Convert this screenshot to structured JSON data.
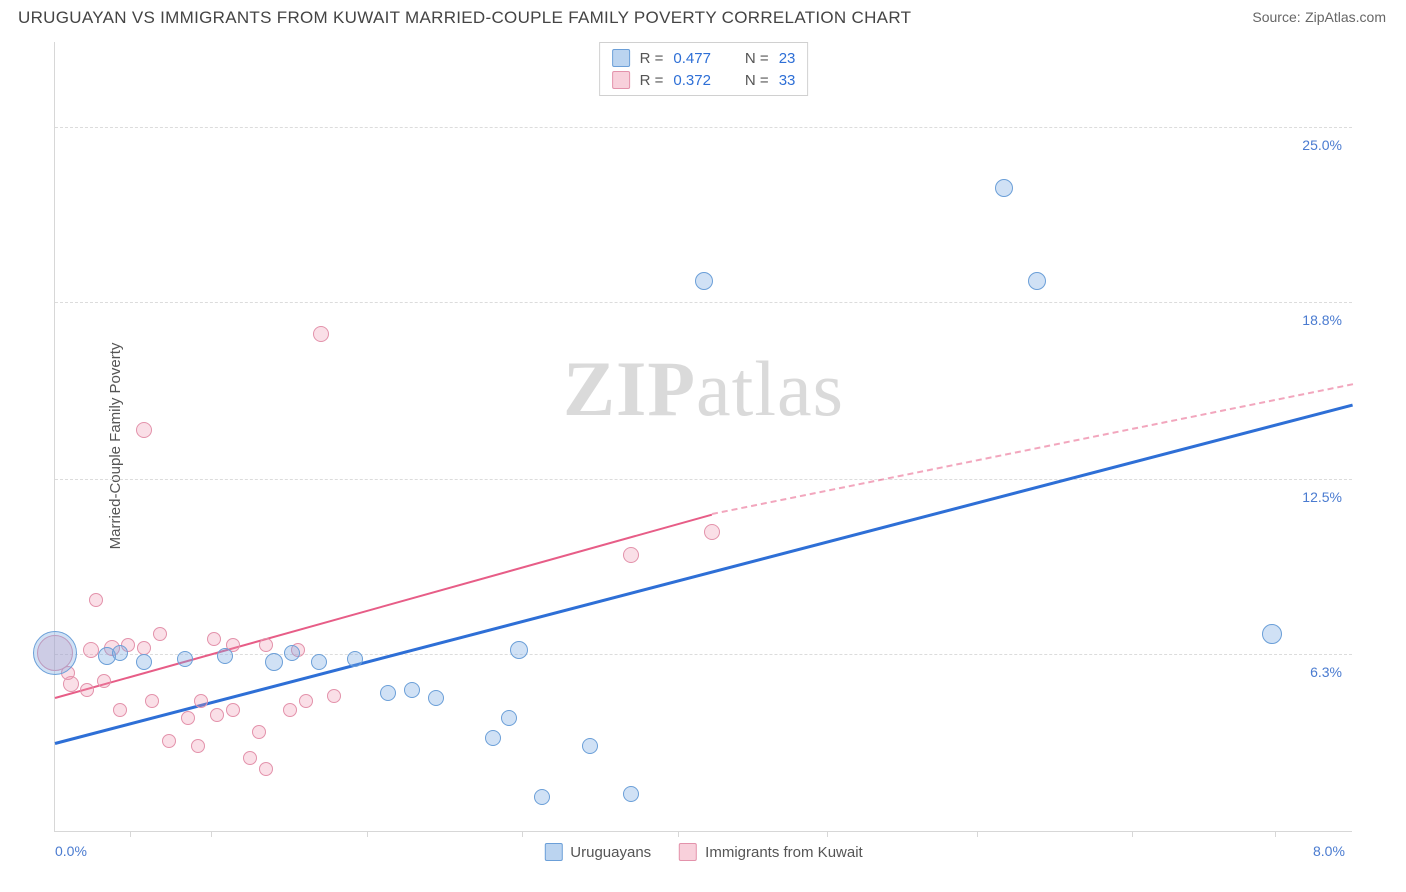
{
  "title": "URUGUAYAN VS IMMIGRANTS FROM KUWAIT MARRIED-COUPLE FAMILY POVERTY CORRELATION CHART",
  "source_label": "Source:",
  "source_name": "ZipAtlas.com",
  "watermark": "ZIPatlas",
  "y_axis_label": "Married-Couple Family Poverty",
  "chart": {
    "type": "scatter",
    "xlim": [
      0,
      8
    ],
    "ylim": [
      0,
      28
    ],
    "x_ticks_pct": [
      0.058,
      0.12,
      0.24,
      0.36,
      0.48,
      0.595,
      0.71,
      0.83,
      0.94
    ],
    "x_labels": [
      {
        "pct": 0.0,
        "text": "0.0%"
      },
      {
        "pct": 1.0,
        "text": "8.0%"
      }
    ],
    "y_gridlines": [
      6.3,
      12.5,
      18.8,
      25.0
    ],
    "y_labels": [
      "6.3%",
      "12.5%",
      "18.8%",
      "25.0%"
    ],
    "background_color": "#ffffff",
    "grid_color": "#dcdcdc",
    "axis_color": "#d7d7d7",
    "label_color": "#4a7bd0",
    "series": {
      "blue": {
        "name": "Uruguayans",
        "color_fill": "rgba(120,170,225,0.35)",
        "color_stroke": "#6b9fd8",
        "trend_color": "#2e6fd6",
        "R": "0.477",
        "N": "23",
        "trend": {
          "x1": 0,
          "y1": 3.2,
          "x2": 8,
          "y2": 15.2
        },
        "points": [
          {
            "x": 0.0,
            "y": 6.3,
            "r": 22
          },
          {
            "x": 0.32,
            "y": 6.2,
            "r": 9
          },
          {
            "x": 0.4,
            "y": 6.3,
            "r": 8
          },
          {
            "x": 0.55,
            "y": 6.0,
            "r": 8
          },
          {
            "x": 0.8,
            "y": 6.1,
            "r": 8
          },
          {
            "x": 1.05,
            "y": 6.2,
            "r": 8
          },
          {
            "x": 1.35,
            "y": 6.0,
            "r": 9
          },
          {
            "x": 1.46,
            "y": 6.3,
            "r": 8
          },
          {
            "x": 1.63,
            "y": 6.0,
            "r": 8
          },
          {
            "x": 1.85,
            "y": 6.1,
            "r": 8
          },
          {
            "x": 2.05,
            "y": 4.9,
            "r": 8
          },
          {
            "x": 2.2,
            "y": 5.0,
            "r": 8
          },
          {
            "x": 2.35,
            "y": 4.7,
            "r": 8
          },
          {
            "x": 2.7,
            "y": 3.3,
            "r": 8
          },
          {
            "x": 2.8,
            "y": 4.0,
            "r": 8
          },
          {
            "x": 2.86,
            "y": 6.4,
            "r": 9
          },
          {
            "x": 3.0,
            "y": 1.2,
            "r": 8
          },
          {
            "x": 3.3,
            "y": 3.0,
            "r": 8
          },
          {
            "x": 3.55,
            "y": 1.3,
            "r": 8
          },
          {
            "x": 4.0,
            "y": 19.5,
            "r": 9
          },
          {
            "x": 5.85,
            "y": 22.8,
            "r": 9
          },
          {
            "x": 6.05,
            "y": 19.5,
            "r": 9
          },
          {
            "x": 7.5,
            "y": 7.0,
            "r": 10
          }
        ]
      },
      "pink": {
        "name": "Immigrants from Kuwait",
        "color_fill": "rgba(240,150,175,0.30)",
        "color_stroke": "#e392ab",
        "trend_color": "#e75d87",
        "R": "0.372",
        "N": "33",
        "trend_solid": {
          "x1": 0,
          "y1": 4.8,
          "x2": 4.05,
          "y2": 11.3
        },
        "trend_dash": {
          "x1": 4.05,
          "y1": 11.3,
          "x2": 8,
          "y2": 15.9
        },
        "points": [
          {
            "x": 0.0,
            "y": 6.3,
            "r": 18
          },
          {
            "x": 0.1,
            "y": 5.2,
            "r": 8
          },
          {
            "x": 0.08,
            "y": 5.6,
            "r": 7
          },
          {
            "x": 0.2,
            "y": 5.0,
            "r": 7
          },
          {
            "x": 0.22,
            "y": 6.4,
            "r": 8
          },
          {
            "x": 0.25,
            "y": 8.2,
            "r": 7
          },
          {
            "x": 0.3,
            "y": 5.3,
            "r": 7
          },
          {
            "x": 0.35,
            "y": 6.5,
            "r": 8
          },
          {
            "x": 0.4,
            "y": 4.3,
            "r": 7
          },
          {
            "x": 0.45,
            "y": 6.6,
            "r": 7
          },
          {
            "x": 0.55,
            "y": 14.2,
            "r": 8
          },
          {
            "x": 0.55,
            "y": 6.5,
            "r": 7
          },
          {
            "x": 0.6,
            "y": 4.6,
            "r": 7
          },
          {
            "x": 0.65,
            "y": 7.0,
            "r": 7
          },
          {
            "x": 0.7,
            "y": 3.2,
            "r": 7
          },
          {
            "x": 0.82,
            "y": 4.0,
            "r": 7
          },
          {
            "x": 0.88,
            "y": 3.0,
            "r": 7
          },
          {
            "x": 0.9,
            "y": 4.6,
            "r": 7
          },
          {
            "x": 0.98,
            "y": 6.8,
            "r": 7
          },
          {
            "x": 1.0,
            "y": 4.1,
            "r": 7
          },
          {
            "x": 1.1,
            "y": 6.6,
            "r": 7
          },
          {
            "x": 1.1,
            "y": 4.3,
            "r": 7
          },
          {
            "x": 1.2,
            "y": 2.6,
            "r": 7
          },
          {
            "x": 1.26,
            "y": 3.5,
            "r": 7
          },
          {
            "x": 1.3,
            "y": 2.2,
            "r": 7
          },
          {
            "x": 1.3,
            "y": 6.6,
            "r": 7
          },
          {
            "x": 1.45,
            "y": 4.3,
            "r": 7
          },
          {
            "x": 1.5,
            "y": 6.4,
            "r": 7
          },
          {
            "x": 1.55,
            "y": 4.6,
            "r": 7
          },
          {
            "x": 1.64,
            "y": 17.6,
            "r": 8
          },
          {
            "x": 1.72,
            "y": 4.8,
            "r": 7
          },
          {
            "x": 3.55,
            "y": 9.8,
            "r": 8
          },
          {
            "x": 4.05,
            "y": 10.6,
            "r": 8
          }
        ]
      }
    }
  },
  "r_legend_labels": {
    "R": "R =",
    "N": "N ="
  },
  "bottom_legend": [
    "Uruguayans",
    "Immigrants from Kuwait"
  ]
}
